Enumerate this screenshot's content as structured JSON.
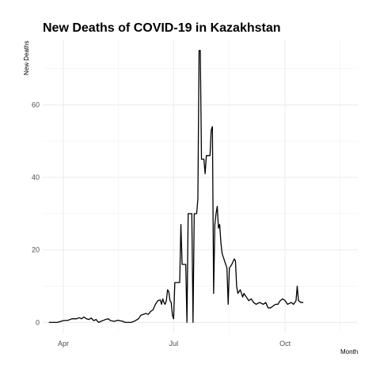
{
  "chart_data": {
    "type": "line",
    "title": "New Deaths of COVID-19 in Kazakhstan",
    "xlabel": "Month",
    "ylabel": "New Deaths",
    "x_ticks": [
      "Apr",
      "Jul",
      "Oct"
    ],
    "y_ticks": [
      0,
      20,
      40,
      60
    ],
    "xlim": [
      "2020-03-15",
      "2020-11-30"
    ],
    "ylim": [
      -3,
      78
    ],
    "grid": true,
    "series": [
      {
        "points": [
          [
            "2020-03-20",
            0
          ],
          [
            "2020-03-27",
            0
          ],
          [
            "2020-04-01",
            0.5
          ],
          [
            "2020-04-05",
            0.6
          ],
          [
            "2020-04-08",
            1
          ],
          [
            "2020-04-12",
            1
          ],
          [
            "2020-04-14",
            1.3
          ],
          [
            "2020-04-16",
            1
          ],
          [
            "2020-04-18",
            1.5
          ],
          [
            "2020-04-20",
            1
          ],
          [
            "2020-04-22",
            0.8
          ],
          [
            "2020-04-24",
            1.2
          ],
          [
            "2020-04-26",
            0.5
          ],
          [
            "2020-04-28",
            0.8
          ],
          [
            "2020-04-30",
            0
          ],
          [
            "2020-05-02",
            0.3
          ],
          [
            "2020-05-05",
            0.7
          ],
          [
            "2020-05-08",
            1
          ],
          [
            "2020-05-10",
            0.5
          ],
          [
            "2020-05-13",
            0.3
          ],
          [
            "2020-05-16",
            0.6
          ],
          [
            "2020-05-20",
            0.3
          ],
          [
            "2020-05-22",
            0
          ],
          [
            "2020-05-27",
            0
          ],
          [
            "2020-05-30",
            0.4
          ],
          [
            "2020-06-02",
            1
          ],
          [
            "2020-06-04",
            2
          ],
          [
            "2020-06-06",
            2.2
          ],
          [
            "2020-06-08",
            2.5
          ],
          [
            "2020-06-10",
            2.2
          ],
          [
            "2020-06-12",
            3
          ],
          [
            "2020-06-14",
            3.5
          ],
          [
            "2020-06-16",
            5
          ],
          [
            "2020-06-18",
            6
          ],
          [
            "2020-06-20",
            6.2
          ],
          [
            "2020-06-21",
            5
          ],
          [
            "2020-06-22",
            6.5
          ],
          [
            "2020-06-23",
            5.5
          ],
          [
            "2020-06-24",
            5
          ],
          [
            "2020-06-25",
            6
          ],
          [
            "2020-06-26",
            9
          ],
          [
            "2020-06-27",
            8.5
          ],
          [
            "2020-06-28",
            6
          ],
          [
            "2020-06-29",
            5.5
          ],
          [
            "2020-06-30",
            2
          ],
          [
            "2020-07-01",
            1
          ],
          [
            "2020-07-02",
            11
          ],
          [
            "2020-07-05",
            11
          ],
          [
            "2020-07-06",
            11
          ],
          [
            "2020-07-07",
            27
          ],
          [
            "2020-07-08",
            16
          ],
          [
            "2020-07-11",
            16
          ],
          [
            "2020-07-12",
            0
          ],
          [
            "2020-07-13",
            30
          ],
          [
            "2020-07-16",
            30
          ],
          [
            "2020-07-17",
            0
          ],
          [
            "2020-07-18",
            30
          ],
          [
            "2020-07-20",
            30
          ],
          [
            "2020-07-21",
            34
          ],
          [
            "2020-07-22",
            75
          ],
          [
            "2020-07-23",
            75
          ],
          [
            "2020-07-24",
            45
          ],
          [
            "2020-07-26",
            45
          ],
          [
            "2020-07-27",
            41
          ],
          [
            "2020-07-28",
            46
          ],
          [
            "2020-07-31",
            46
          ],
          [
            "2020-08-01",
            53
          ],
          [
            "2020-08-02",
            54
          ],
          [
            "2020-08-03",
            8
          ],
          [
            "2020-08-04",
            27
          ],
          [
            "2020-08-05",
            30
          ],
          [
            "2020-08-06",
            32
          ],
          [
            "2020-08-07",
            26
          ],
          [
            "2020-08-08",
            27
          ],
          [
            "2020-08-09",
            22
          ],
          [
            "2020-08-10",
            19
          ],
          [
            "2020-08-12",
            17
          ],
          [
            "2020-08-14",
            15
          ],
          [
            "2020-08-15",
            5
          ],
          [
            "2020-08-16",
            15
          ],
          [
            "2020-08-18",
            16
          ],
          [
            "2020-08-20",
            17.5
          ],
          [
            "2020-08-21",
            17
          ],
          [
            "2020-08-22",
            10
          ],
          [
            "2020-08-23",
            8
          ],
          [
            "2020-08-25",
            9
          ],
          [
            "2020-08-27",
            7
          ],
          [
            "2020-08-28",
            8
          ],
          [
            "2020-08-30",
            7
          ],
          [
            "2020-09-01",
            6
          ],
          [
            "2020-09-03",
            6.5
          ],
          [
            "2020-09-05",
            5.5
          ],
          [
            "2020-09-07",
            5
          ],
          [
            "2020-09-10",
            5.5
          ],
          [
            "2020-09-13",
            5
          ],
          [
            "2020-09-15",
            5.5
          ],
          [
            "2020-09-17",
            4
          ],
          [
            "2020-09-19",
            4
          ],
          [
            "2020-09-21",
            4.5
          ],
          [
            "2020-09-23",
            5
          ],
          [
            "2020-09-25",
            5
          ],
          [
            "2020-09-27",
            6
          ],
          [
            "2020-09-29",
            6.5
          ],
          [
            "2020-10-01",
            6
          ],
          [
            "2020-10-03",
            5
          ],
          [
            "2020-10-06",
            5.5
          ],
          [
            "2020-10-08",
            5
          ],
          [
            "2020-10-10",
            6
          ],
          [
            "2020-10-11",
            10
          ],
          [
            "2020-10-12",
            6
          ],
          [
            "2020-10-14",
            5.5
          ],
          [
            "2020-10-16",
            5.5
          ]
        ]
      }
    ]
  }
}
